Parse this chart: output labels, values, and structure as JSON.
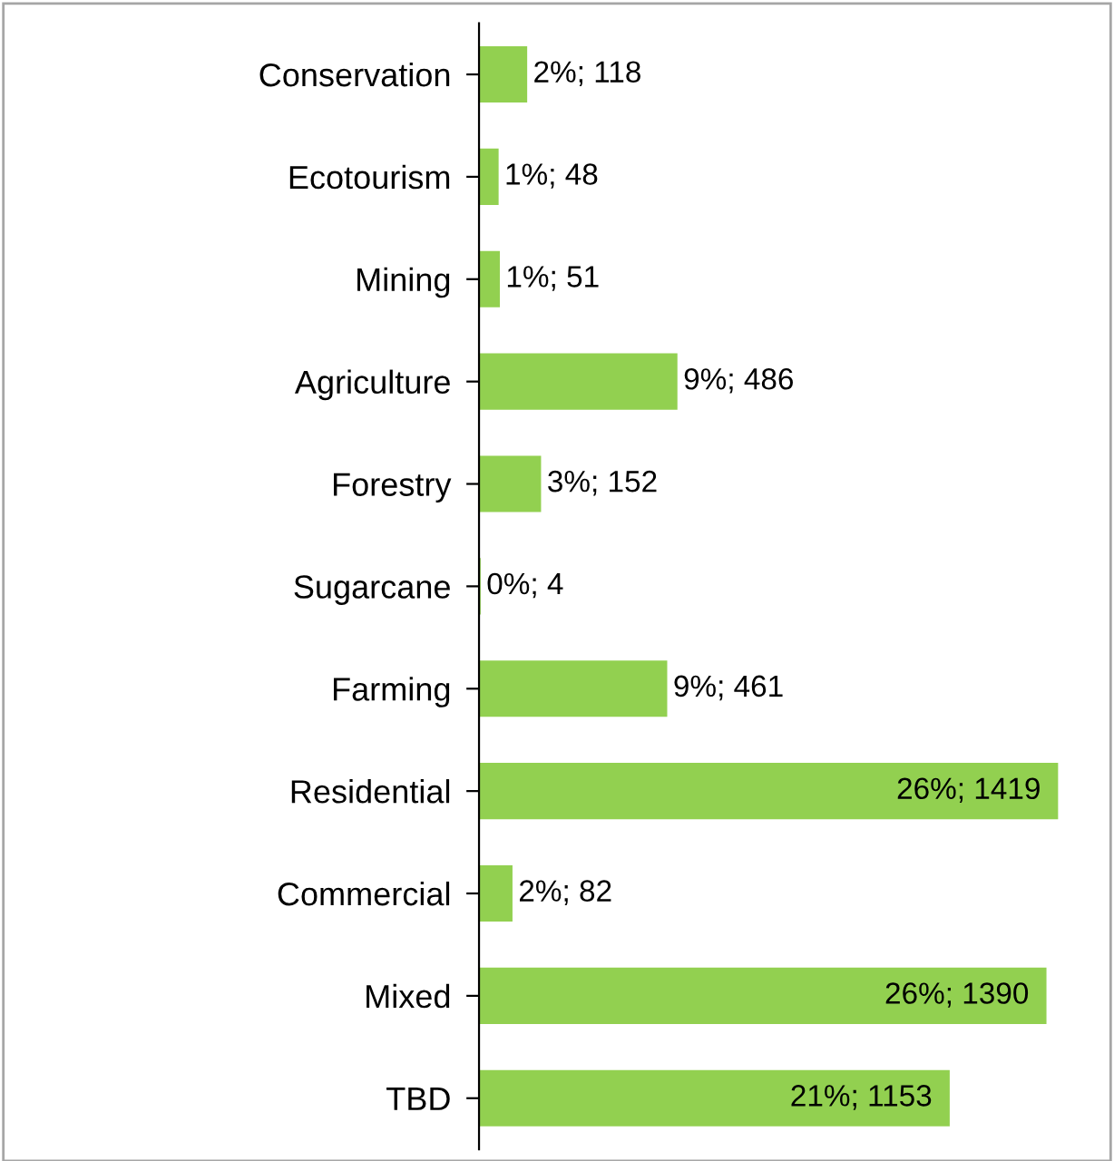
{
  "chart_data": {
    "type": "bar",
    "orientation": "horizontal",
    "categories": [
      "Conservation",
      "Ecotourism",
      "Mining",
      "Agriculture",
      "Forestry",
      "Sugarcane",
      "Farming",
      "Residential",
      "Commercial",
      "Mixed",
      "TBD"
    ],
    "values": [
      118,
      48,
      51,
      486,
      152,
      4,
      461,
      1419,
      82,
      1390,
      1153
    ],
    "value_labels": [
      "2%; 118",
      "1%; 48",
      "1%; 51",
      "9%; 486",
      "3%; 152",
      "0%; 4",
      "9%; 461",
      "26%; 1419",
      "2%; 82",
      "26%; 1390",
      "21%; 1153"
    ],
    "color": "#92d050",
    "grid": false,
    "legend": false
  }
}
